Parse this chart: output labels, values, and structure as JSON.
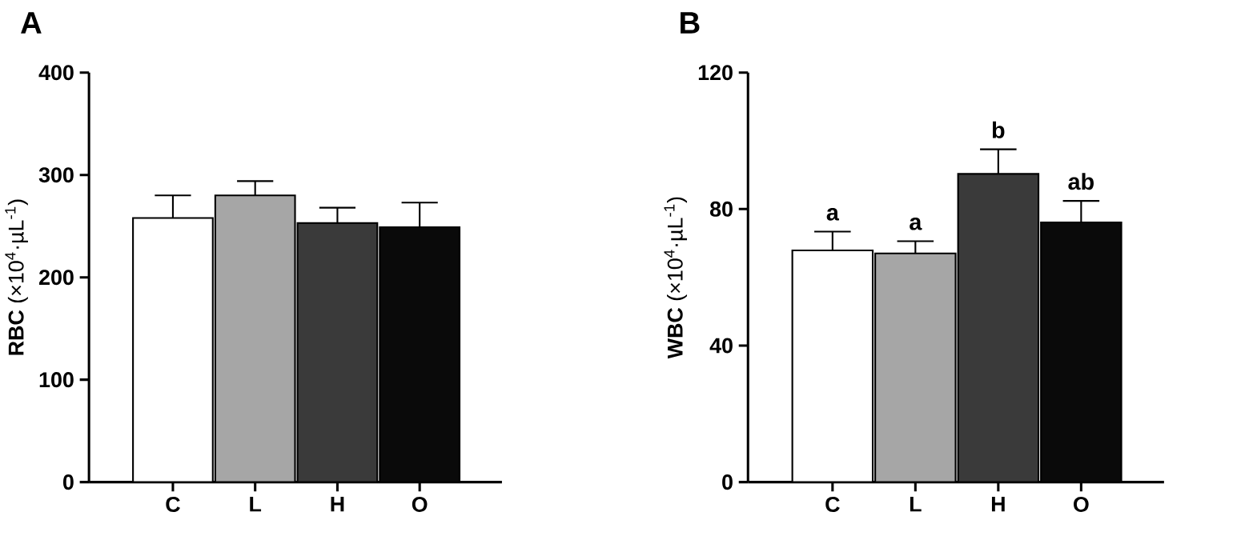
{
  "chart_data": [
    {
      "type": "bar",
      "title": "A",
      "ylabel": "**RBC** (×10$^{4}$·µL$^{-1}$)",
      "categories": [
        "C",
        "L",
        "H",
        "O"
      ],
      "values": [
        258,
        280,
        253,
        249
      ],
      "colors": [
        "#ffffff",
        "#a6a6a6",
        "#3a3a3a",
        "#0a0a0a"
      ],
      "errors": [
        [
          258,
          280
        ],
        [
          280,
          294
        ],
        [
          253,
          268
        ],
        [
          249,
          273
        ]
      ],
      "ylim": [
        0,
        400
      ],
      "yticks": [
        0,
        100,
        200,
        300,
        400
      ]
    },
    {
      "type": "bar",
      "title": "B",
      "ylabel": "**WBC** (×10$^{4}$·µL$^{-1}$)",
      "categories": [
        "C",
        "L",
        "H",
        "O"
      ],
      "values": [
        67.9,
        67.0,
        90.3,
        76.1
      ],
      "colors": [
        "#ffffff",
        "#a6a6a6",
        "#3a3a3a",
        "#0a0a0a"
      ],
      "errors": [
        [
          67.9,
          73.4
        ],
        [
          67.0,
          70.6
        ],
        [
          90.3,
          97.5
        ],
        [
          76.1,
          82.4
        ]
      ],
      "ylim": [
        0,
        120
      ],
      "yticks": [
        0,
        40,
        80,
        120
      ],
      "annotations": [
        "a",
        "a",
        "b",
        "ab"
      ]
    }
  ]
}
